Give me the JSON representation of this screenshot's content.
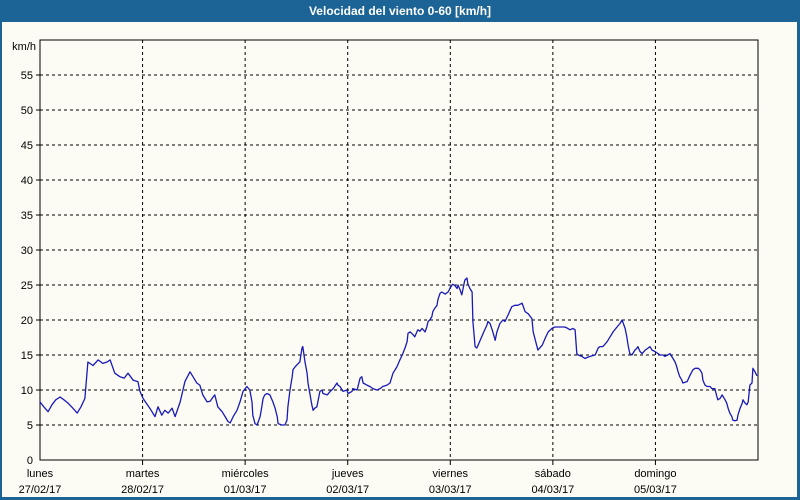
{
  "window": {
    "title": "Velocidad del viento 0-60 [km/h]"
  },
  "colors": {
    "frame_blue": "#1c6396",
    "title_text": "#ffffff",
    "panel_bg": "#fcfcf4",
    "grid_black": "#000000",
    "line_blue": "#1a1ab8"
  },
  "chart_data": {
    "type": "line",
    "title": "Velocidad del viento 0-60 [km/h]",
    "ylabel_unit": "km/h",
    "ylim": [
      0,
      60
    ],
    "y_ticks": [
      0,
      5,
      10,
      15,
      20,
      25,
      30,
      35,
      40,
      45,
      50,
      55
    ],
    "grid": "dashed",
    "legend": "none",
    "x_axis": {
      "total_hours": 168,
      "days": [
        {
          "name": "lunes",
          "date": "27/02/17"
        },
        {
          "name": "martes",
          "date": "28/02/17"
        },
        {
          "name": "miércoles",
          "date": "01/03/17"
        },
        {
          "name": "jueves",
          "date": "02/03/17"
        },
        {
          "name": "viernes",
          "date": "03/03/17"
        },
        {
          "name": "sábado",
          "date": "04/03/17"
        },
        {
          "name": "domingo",
          "date": "05/03/17"
        }
      ]
    },
    "series": [
      {
        "name": "velocidad_viento_kmh",
        "color": "#1a1ab8",
        "points": [
          [
            0,
            8.3
          ],
          [
            0.9,
            7.6
          ],
          [
            1.9,
            6.9
          ],
          [
            2.8,
            7.9
          ],
          [
            3.7,
            8.6
          ],
          [
            4.7,
            9
          ],
          [
            5.6,
            8.6
          ],
          [
            6.6,
            8.1
          ],
          [
            7.7,
            7.4
          ],
          [
            8.7,
            6.7
          ],
          [
            9.6,
            7.6
          ],
          [
            10.5,
            8.8
          ],
          [
            11.2,
            14
          ],
          [
            12.4,
            13.5
          ],
          [
            13.6,
            14.3
          ],
          [
            14.7,
            13.8
          ],
          [
            15.7,
            14
          ],
          [
            16.4,
            14.3
          ],
          [
            17.5,
            12.4
          ],
          [
            18.7,
            11.9
          ],
          [
            19.7,
            11.7
          ],
          [
            20.6,
            12.4
          ],
          [
            21.8,
            11.4
          ],
          [
            22.9,
            11.2
          ],
          [
            23.4,
            9.8
          ],
          [
            24.1,
            8.8
          ],
          [
            25.7,
            7.4
          ],
          [
            26.9,
            6.2
          ],
          [
            27.6,
            7.6
          ],
          [
            28.5,
            6.4
          ],
          [
            29.2,
            7.1
          ],
          [
            30,
            6.7
          ],
          [
            30.9,
            7.4
          ],
          [
            31.6,
            6.2
          ],
          [
            32.8,
            8.3
          ],
          [
            33.9,
            11.2
          ],
          [
            35.1,
            12.6
          ],
          [
            35.8,
            11.9
          ],
          [
            36.7,
            11
          ],
          [
            37.4,
            10.7
          ],
          [
            38.1,
            9.3
          ],
          [
            39.1,
            8.3
          ],
          [
            39.8,
            8.4
          ],
          [
            40.5,
            9
          ],
          [
            40.9,
            9.3
          ],
          [
            41.6,
            7.6
          ],
          [
            42.6,
            6.9
          ],
          [
            43.3,
            6.2
          ],
          [
            44,
            5.5
          ],
          [
            44.5,
            5.3
          ],
          [
            45.2,
            6.2
          ],
          [
            46.1,
            7.1
          ],
          [
            46.8,
            8.3
          ],
          [
            47.5,
            9.8
          ],
          [
            48.4,
            10.5
          ],
          [
            49.1,
            10
          ],
          [
            49.6,
            8.3
          ],
          [
            49.8,
            6.4
          ],
          [
            50.3,
            5.2
          ],
          [
            50.8,
            5
          ],
          [
            51.5,
            6.2
          ],
          [
            51.9,
            7.6
          ],
          [
            52.2,
            8.8
          ],
          [
            52.6,
            9.3
          ],
          [
            53.1,
            9.5
          ],
          [
            53.8,
            9.3
          ],
          [
            54.5,
            8.3
          ],
          [
            55,
            7.4
          ],
          [
            55.5,
            6.2
          ],
          [
            55.7,
            5.2
          ],
          [
            56.6,
            5
          ],
          [
            57.3,
            5
          ],
          [
            57.8,
            5.7
          ],
          [
            58,
            7.6
          ],
          [
            58.5,
            10
          ],
          [
            59,
            11.9
          ],
          [
            59.2,
            12.9
          ],
          [
            59.7,
            13.3
          ],
          [
            60.1,
            13.6
          ],
          [
            60.8,
            14
          ],
          [
            61.3,
            16
          ],
          [
            61.5,
            16.2
          ],
          [
            62,
            14
          ],
          [
            62.5,
            12.4
          ],
          [
            62.7,
            11
          ],
          [
            63.2,
            9.3
          ],
          [
            63.6,
            7.9
          ],
          [
            63.9,
            7.1
          ],
          [
            64.3,
            7.4
          ],
          [
            64.8,
            7.6
          ],
          [
            65.5,
            9.8
          ],
          [
            66,
            10
          ],
          [
            66.2,
            9.5
          ],
          [
            67.2,
            9.3
          ],
          [
            67.9,
            9.8
          ],
          [
            68.6,
            10.2
          ],
          [
            69.5,
            11
          ],
          [
            69.7,
            10.7
          ],
          [
            70.2,
            10.5
          ],
          [
            70.9,
            9.8
          ],
          [
            71.8,
            10
          ],
          [
            72.1,
            9.5
          ],
          [
            73,
            9.8
          ],
          [
            73.2,
            10.2
          ],
          [
            74.2,
            10
          ],
          [
            74.9,
            11.7
          ],
          [
            75.3,
            11.9
          ],
          [
            75.6,
            11
          ],
          [
            76.5,
            10.7
          ],
          [
            77.2,
            10.5
          ],
          [
            77.9,
            10.2
          ],
          [
            78.8,
            10
          ],
          [
            79.6,
            10.2
          ],
          [
            80.2,
            10.5
          ],
          [
            81.2,
            10.7
          ],
          [
            81.9,
            11
          ],
          [
            82.6,
            12.4
          ],
          [
            83.5,
            13.3
          ],
          [
            84.2,
            14.3
          ],
          [
            84.9,
            15.2
          ],
          [
            85.4,
            16
          ],
          [
            85.9,
            16.9
          ],
          [
            86.1,
            18.1
          ],
          [
            86.6,
            18.3
          ],
          [
            87.3,
            17.9
          ],
          [
            87.7,
            17.6
          ],
          [
            88.2,
            18.3
          ],
          [
            88.4,
            18.6
          ],
          [
            88.9,
            18.4
          ],
          [
            89.4,
            18.8
          ],
          [
            90.1,
            18.3
          ],
          [
            90.5,
            19
          ],
          [
            90.8,
            19.8
          ],
          [
            91.2,
            20
          ],
          [
            91.7,
            20.5
          ],
          [
            91.9,
            21.2
          ],
          [
            92.4,
            21.7
          ],
          [
            92.9,
            22.1
          ],
          [
            93.1,
            22.9
          ],
          [
            93.6,
            23.8
          ],
          [
            94,
            24
          ],
          [
            94.8,
            23.7
          ],
          [
            95.2,
            23.9
          ],
          [
            95.5,
            24
          ],
          [
            95.9,
            24.5
          ],
          [
            96.4,
            25
          ],
          [
            96.6,
            25.1
          ],
          [
            97.1,
            24.9
          ],
          [
            97.6,
            24.5
          ],
          [
            97.8,
            25
          ],
          [
            98.3,
            24.3
          ],
          [
            98.7,
            23.6
          ],
          [
            99,
            24.5
          ],
          [
            99.4,
            25.7
          ],
          [
            99.9,
            26
          ],
          [
            100.1,
            25.2
          ],
          [
            100.6,
            24.5
          ],
          [
            101.1,
            24
          ],
          [
            101.3,
            19.8
          ],
          [
            101.8,
            16.2
          ],
          [
            102.2,
            16
          ],
          [
            102.5,
            16.4
          ],
          [
            103,
            17.1
          ],
          [
            103.7,
            18.1
          ],
          [
            104.6,
            19.3
          ],
          [
            104.8,
            19.8
          ],
          [
            105.3,
            19.5
          ],
          [
            105.8,
            18.6
          ],
          [
            106.5,
            17.1
          ],
          [
            106.9,
            18.3
          ],
          [
            107.6,
            19.5
          ],
          [
            108.3,
            20
          ],
          [
            108.8,
            19.8
          ],
          [
            109.5,
            20.7
          ],
          [
            110.4,
            21.9
          ],
          [
            111.1,
            22.1
          ],
          [
            111.8,
            22.1
          ],
          [
            112.8,
            22.4
          ],
          [
            113.5,
            21.2
          ],
          [
            114.2,
            20.9
          ],
          [
            115.1,
            20.2
          ],
          [
            115.4,
            18.3
          ],
          [
            116.3,
            16.2
          ],
          [
            116.5,
            15.7
          ],
          [
            117.5,
            16.4
          ],
          [
            118.2,
            17.4
          ],
          [
            118.9,
            18.3
          ],
          [
            119.8,
            18.8
          ],
          [
            120.5,
            19
          ],
          [
            121.2,
            19
          ],
          [
            122.1,
            19
          ],
          [
            122.8,
            19
          ],
          [
            123.5,
            18.8
          ],
          [
            124,
            18.6
          ],
          [
            124.7,
            18.8
          ],
          [
            125.2,
            18.6
          ],
          [
            125.6,
            15.2
          ],
          [
            125.9,
            15
          ],
          [
            126.8,
            14.8
          ],
          [
            127.5,
            14.5
          ],
          [
            128.2,
            14.7
          ],
          [
            129.2,
            14.9
          ],
          [
            129.9,
            15
          ],
          [
            130.6,
            16
          ],
          [
            131,
            16.2
          ],
          [
            131.7,
            16.2
          ],
          [
            132.7,
            16.9
          ],
          [
            133.4,
            17.6
          ],
          [
            134.1,
            18.3
          ],
          [
            135,
            19
          ],
          [
            135.7,
            19.5
          ],
          [
            136.2,
            20
          ],
          [
            136.9,
            18.8
          ],
          [
            137.3,
            17.6
          ],
          [
            137.6,
            16.4
          ],
          [
            138,
            15.2
          ],
          [
            138.5,
            15
          ],
          [
            139.2,
            15.7
          ],
          [
            139.7,
            16
          ],
          [
            139.9,
            16.2
          ],
          [
            140.4,
            15.5
          ],
          [
            140.9,
            15.2
          ],
          [
            141.6,
            15.7
          ],
          [
            142.3,
            16
          ],
          [
            142.7,
            16.2
          ],
          [
            143.2,
            15.7
          ],
          [
            143.9,
            15.5
          ],
          [
            144.6,
            15.2
          ],
          [
            145.1,
            15
          ],
          [
            145.8,
            15
          ],
          [
            146.2,
            14.8
          ],
          [
            146.9,
            15
          ],
          [
            147.4,
            15.2
          ],
          [
            148.1,
            14.5
          ],
          [
            148.6,
            14
          ],
          [
            149,
            13.3
          ],
          [
            149.3,
            12.6
          ],
          [
            149.7,
            11.9
          ],
          [
            150.2,
            11.4
          ],
          [
            150.4,
            11
          ],
          [
            151.4,
            11.2
          ],
          [
            152.1,
            12.1
          ],
          [
            152.5,
            12.6
          ],
          [
            152.8,
            12.9
          ],
          [
            153.3,
            13.1
          ],
          [
            154,
            13.1
          ],
          [
            154.4,
            12.9
          ],
          [
            154.9,
            12.4
          ],
          [
            155.1,
            11.4
          ],
          [
            155.6,
            10.7
          ],
          [
            156.1,
            10.5
          ],
          [
            156.8,
            10.5
          ],
          [
            157.2,
            10.2
          ],
          [
            157.9,
            10.2
          ],
          [
            158.4,
            9
          ],
          [
            158.6,
            8.6
          ],
          [
            159.1,
            8.8
          ],
          [
            159.6,
            9.3
          ],
          [
            160.3,
            8.6
          ],
          [
            160.7,
            8.1
          ],
          [
            161,
            7.4
          ],
          [
            161.4,
            6.7
          ],
          [
            161.9,
            6.2
          ],
          [
            162.1,
            5.7
          ],
          [
            162.6,
            5.6
          ],
          [
            163.1,
            5.7
          ],
          [
            163.3,
            6.4
          ],
          [
            163.8,
            7.4
          ],
          [
            164.3,
            8.1
          ],
          [
            164.5,
            8.6
          ],
          [
            165,
            8.1
          ],
          [
            165.4,
            7.9
          ],
          [
            165.7,
            8.3
          ],
          [
            166.1,
            10.7
          ],
          [
            166.6,
            11
          ],
          [
            166.8,
            13.1
          ],
          [
            167.3,
            12.6
          ],
          [
            167.7,
            12.1
          ]
        ]
      }
    ]
  }
}
